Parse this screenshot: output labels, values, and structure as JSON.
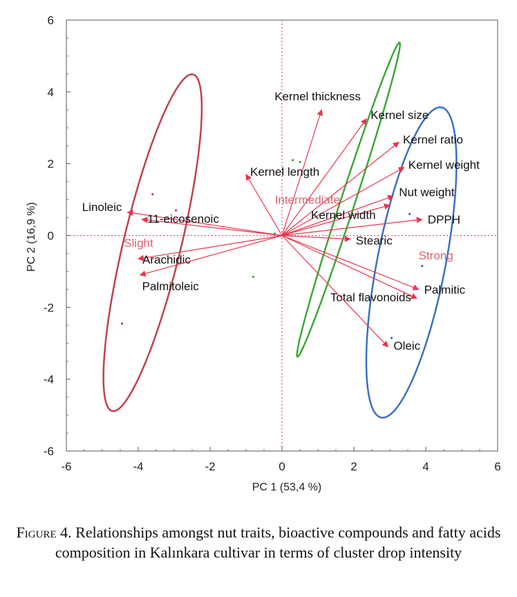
{
  "chart_data": {
    "type": "biplot",
    "xlabel": "PC 1  (53,4 %)",
    "ylabel": "PC 2  (16,9 %)",
    "xlim": [
      -6,
      6
    ],
    "ylim": [
      -6,
      6
    ],
    "xticks": [
      -6,
      -4,
      -2,
      0,
      2,
      4,
      6
    ],
    "yticks": [
      -6,
      -4,
      -2,
      0,
      2,
      4,
      6
    ],
    "grid": false,
    "colors": {
      "vector": "#e8344e",
      "slight": "#c0404e",
      "intermediate": "#3aa935",
      "strong": "#3b6fc9",
      "group_label": "#e06070",
      "reference_line": "#d9304a"
    },
    "vectors": [
      {
        "label": "Kernel thickness",
        "x": 1.1,
        "y": 3.5
      },
      {
        "label": "Kernel size",
        "x": 2.35,
        "y": 3.25
      },
      {
        "label": "Kernel ratio",
        "x": 3.25,
        "y": 2.6
      },
      {
        "label": "Kernel length",
        "x": -1.0,
        "y": 1.7
      },
      {
        "label": "Kernel weight",
        "x": 3.4,
        "y": 1.9
      },
      {
        "label": "Nut weight",
        "x": 3.1,
        "y": 1.1
      },
      {
        "label": "Kernel width",
        "x": 3.0,
        "y": 0.85
      },
      {
        "label": "DPPH",
        "x": 3.9,
        "y": 0.45
      },
      {
        "label": "Stearic",
        "x": 1.9,
        "y": -0.1
      },
      {
        "label": "Linoleic",
        "x": -4.3,
        "y": 0.65
      },
      {
        "label": "11-eicosenoic",
        "x": -3.9,
        "y": 0.45
      },
      {
        "label": "Arachidic",
        "x": -4.0,
        "y": -0.65
      },
      {
        "label": "Palmitoleic",
        "x": -3.95,
        "y": -1.1
      },
      {
        "label": "Palmitic",
        "x": 3.8,
        "y": -1.5
      },
      {
        "label": "Total flavonoids",
        "x": 3.75,
        "y": -1.75
      },
      {
        "label": "Oleic",
        "x": 2.95,
        "y": -3.1
      }
    ],
    "groups": [
      {
        "label": "Slight",
        "center": [
          -3.6,
          -0.2
        ],
        "semi_major": 4.82,
        "semi_minor": 0.8,
        "angle_deg": 76.5,
        "label_pos": [
          -4.4,
          -0.2
        ]
      },
      {
        "label": "Intermediate",
        "center": [
          1.85,
          1.0
        ],
        "semi_major": 4.6,
        "semi_minor": 0.2,
        "angle_deg": 72.0,
        "label_pos": [
          -0.2,
          1.0
        ]
      },
      {
        "label": "Strong",
        "center": [
          3.6,
          -0.75
        ],
        "semi_major": 4.4,
        "semi_minor": 0.95,
        "angle_deg": 79.0,
        "label_pos": [
          3.8,
          -0.55
        ]
      }
    ],
    "points": [
      {
        "x": -3.6,
        "y": 1.15,
        "group": "slight"
      },
      {
        "x": -2.95,
        "y": 0.7,
        "group": "slight"
      },
      {
        "x": -4.45,
        "y": -2.45,
        "group": "slight"
      },
      {
        "x": 0.3,
        "y": 2.1,
        "group": "intermediate"
      },
      {
        "x": 0.5,
        "y": 2.05,
        "group": "intermediate"
      },
      {
        "x": -0.2,
        "y": 0.05,
        "group": "intermediate"
      },
      {
        "x": -0.8,
        "y": -1.15,
        "group": "intermediate"
      },
      {
        "x": 3.55,
        "y": 0.6,
        "group": "strong"
      },
      {
        "x": 3.9,
        "y": -0.85,
        "group": "strong"
      },
      {
        "x": 3.05,
        "y": -2.85,
        "group": "strong"
      }
    ]
  },
  "caption": {
    "figure_number": "Figure 4.",
    "text": "Relationships amongst nut traits, bioactive compounds and fatty acids composition in Kalınkara cultivar in terms of cluster drop intensity"
  }
}
